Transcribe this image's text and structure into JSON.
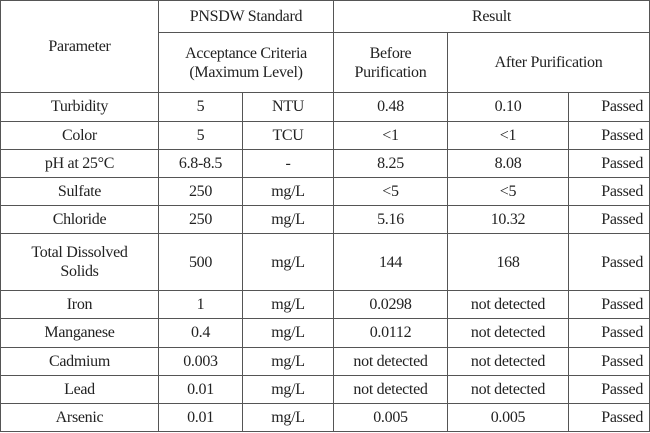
{
  "table": {
    "header": [
      [
        "Parameter",
        "PNSDW Standard",
        "Result"
      ],
      [
        "Acceptance Criteria\n(Maximum Level)",
        "Before\nPurification",
        "After Purification"
      ]
    ],
    "rows": [
      [
        "Turbidity",
        "5",
        "NTU",
        "0.48",
        "0.10",
        "Passed"
      ],
      [
        "Color",
        "5",
        "TCU",
        "<1",
        "<1",
        "Passed"
      ],
      [
        "pH at 25°C",
        "6.8-8.5",
        "-",
        "8.25",
        "8.08",
        "Passed"
      ],
      [
        "Sulfate",
        "250",
        "mg/L",
        "<5",
        "<5",
        "Passed"
      ],
      [
        "Chloride",
        "250",
        "mg/L",
        "5.16",
        "10.32",
        "Passed"
      ],
      [
        "Total Dissolved\nSolids",
        "500",
        "mg/L",
        "144",
        "168",
        "Passed"
      ],
      [
        "Iron",
        "1",
        "mg/L",
        "0.0298",
        "not detected",
        "Passed"
      ],
      [
        "Manganese",
        "0.4",
        "mg/L",
        "0.0112",
        "not detected",
        "Passed"
      ],
      [
        "Cadmium",
        "0.003",
        "mg/L",
        "not detected",
        "not detected",
        "Passed"
      ],
      [
        "Lead",
        "0.01",
        "mg/L",
        "not detected",
        "not detected",
        "Passed"
      ],
      [
        "Arsenic",
        "0.01",
        "mg/L",
        "0.005",
        "0.005",
        "Passed"
      ]
    ]
  }
}
